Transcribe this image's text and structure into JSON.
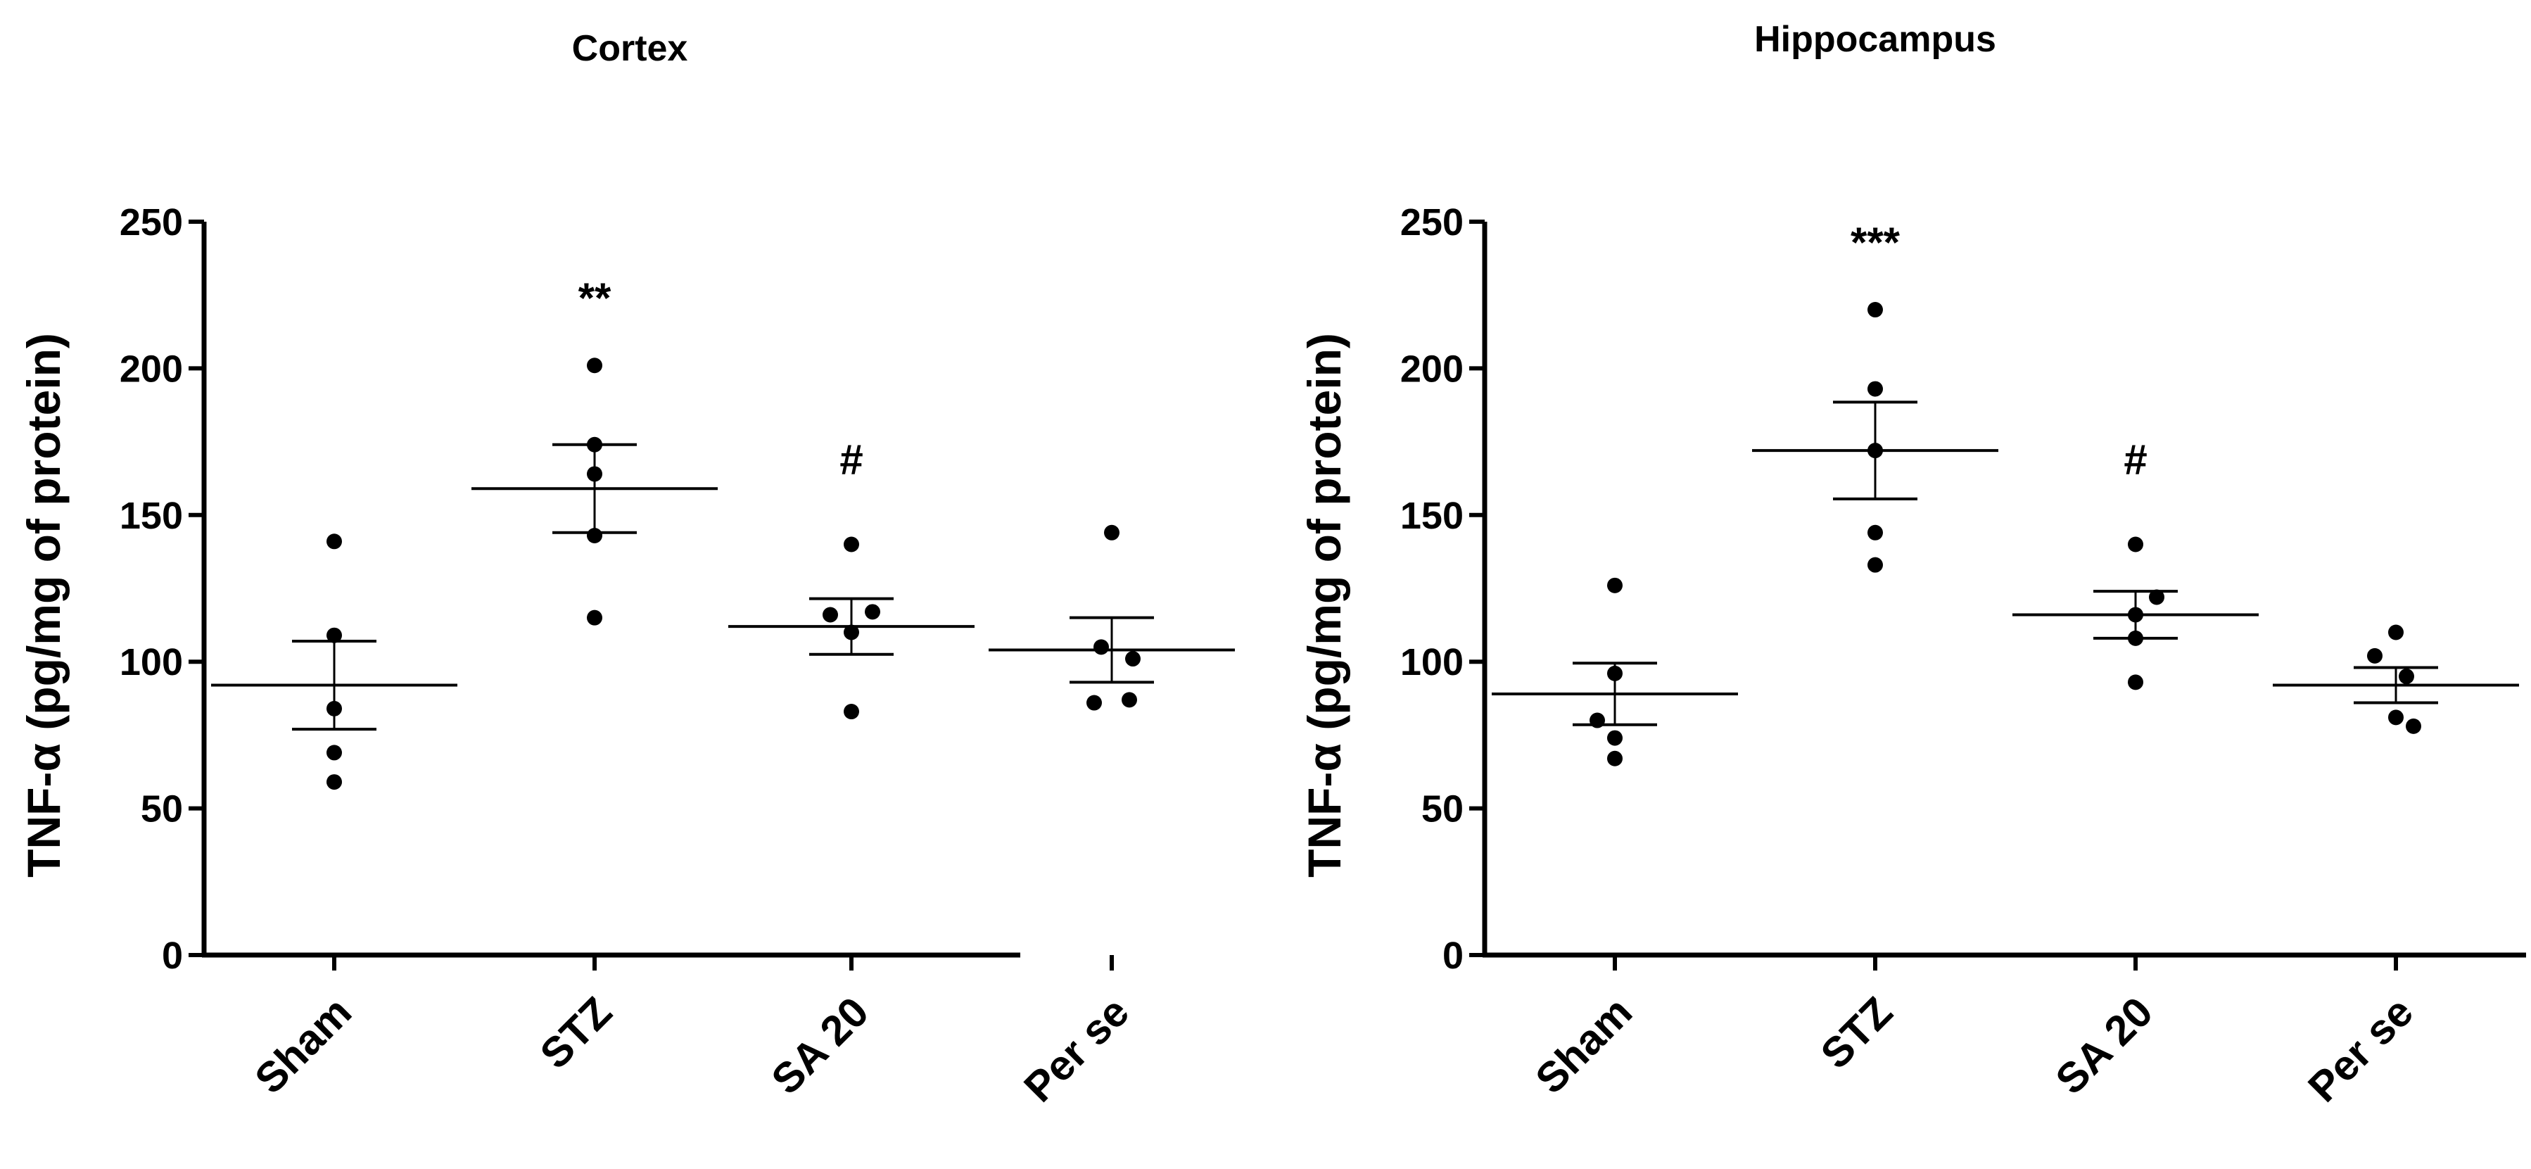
{
  "figure": {
    "layout": "two side-by-side scatter dot plots with mean ± SEM"
  },
  "chart_data": [
    {
      "type": "scatter",
      "title": "Cortex",
      "xlabel": "",
      "ylabel": "TNF-α (pg/mg of protein)",
      "ylim": [
        0,
        250
      ],
      "yticks": [
        0,
        50,
        100,
        150,
        200,
        250
      ],
      "categories": [
        "Sham",
        "STZ",
        "SA 20",
        "Per se"
      ],
      "points": [
        [
          141,
          109,
          84,
          69,
          59
        ],
        [
          201,
          174,
          164,
          143,
          115
        ],
        [
          140,
          116,
          117,
          110,
          83
        ],
        [
          144,
          105,
          101,
          86,
          87
        ]
      ],
      "mean": [
        92,
        159,
        112,
        104
      ],
      "sem": [
        15,
        15,
        9.5,
        11
      ],
      "annotations": [
        "",
        "**",
        "#",
        ""
      ]
    },
    {
      "type": "scatter",
      "title": "Hippocampus",
      "xlabel": "",
      "ylabel": "TNF-α (pg/mg of protein)",
      "ylim": [
        0,
        250
      ],
      "yticks": [
        0,
        50,
        100,
        150,
        200,
        250
      ],
      "categories": [
        "Sham",
        "STZ",
        "SA 20",
        "Per se"
      ],
      "points": [
        [
          126,
          96,
          80,
          74,
          67
        ],
        [
          220,
          193,
          172,
          144,
          133
        ],
        [
          140,
          122,
          116,
          108,
          93
        ],
        [
          110,
          102,
          95,
          81,
          78
        ]
      ],
      "mean": [
        89,
        172,
        116,
        92
      ],
      "sem": [
        10.5,
        16.5,
        8,
        6
      ],
      "annotations": [
        "",
        "***",
        "#",
        ""
      ]
    }
  ]
}
